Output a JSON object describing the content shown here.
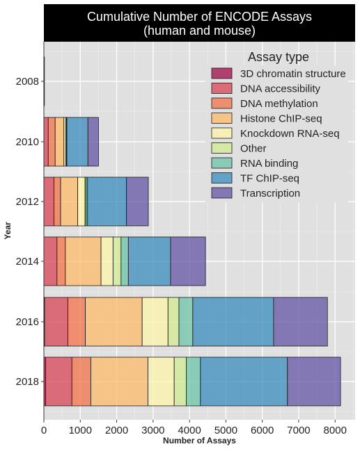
{
  "chart_data": {
    "type": "bar",
    "orientation": "horizontal",
    "stacked": true,
    "title": "Cumulative Number of ENCODE Assays",
    "subtitle": "(human and mouse)",
    "xlabel": "Number of Assays",
    "ylabel": "Year",
    "xlim": [
      0,
      8550
    ],
    "xticks": [
      0,
      1000,
      2000,
      3000,
      4000,
      5000,
      6000,
      7000,
      8000
    ],
    "grid": true,
    "legend_title": "Assay type",
    "legend_position": "top-right",
    "categories": [
      "2008",
      "2010",
      "2012",
      "2014",
      "2016",
      "2018"
    ],
    "series": [
      {
        "name": "3D chromatin structure",
        "color": "#9e0142",
        "values": [
          0,
          0,
          0,
          0,
          20,
          50
        ]
      },
      {
        "name": "DNA accessibility",
        "color": "#d53e4f",
        "values": [
          0,
          120,
          280,
          360,
          640,
          720
        ]
      },
      {
        "name": "DNA methylation",
        "color": "#f46d43",
        "values": [
          0,
          190,
          180,
          230,
          480,
          520
        ]
      },
      {
        "name": "Histone ChIP-seq",
        "color": "#fdb863",
        "values": [
          0,
          240,
          470,
          980,
          1560,
          1570
        ]
      },
      {
        "name": "Knockdown RNA-seq",
        "color": "#fdf4a6",
        "values": [
          0,
          50,
          200,
          330,
          710,
          720
        ]
      },
      {
        "name": "Other",
        "color": "#d0ea8e",
        "values": [
          0,
          20,
          30,
          220,
          300,
          330
        ]
      },
      {
        "name": "RNA binding",
        "color": "#66c2a5",
        "values": [
          0,
          10,
          40,
          200,
          380,
          390
        ]
      },
      {
        "name": "TF ChIP-seq",
        "color": "#3288bd",
        "values": [
          0,
          580,
          1070,
          1160,
          2220,
          2390
        ]
      },
      {
        "name": "Transcription",
        "color": "#5e4fa2",
        "values": [
          10,
          290,
          600,
          960,
          1480,
          1460
        ]
      }
    ]
  }
}
